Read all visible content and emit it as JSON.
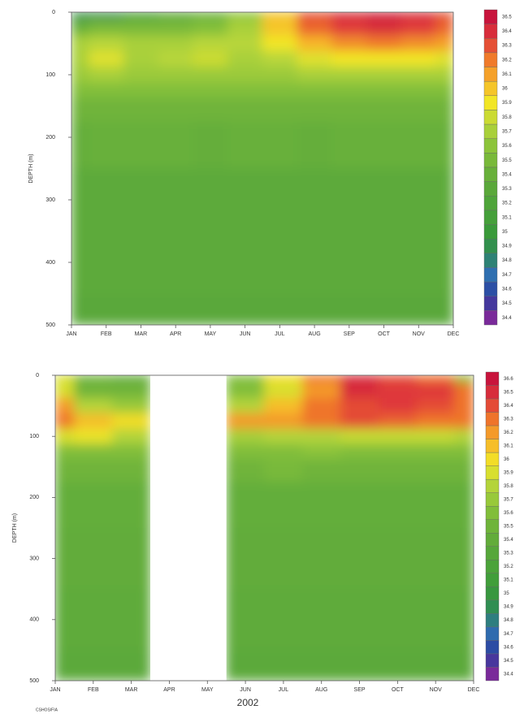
{
  "chart_data": [
    {
      "type": "contour",
      "categories": [
        "JAN",
        "FEB",
        "MAR",
        "APR",
        "MAY",
        "JUN",
        "JUL",
        "AUG",
        "SEP",
        "OCT",
        "NOV",
        "DEC"
      ],
      "y": [
        0,
        25,
        50,
        75,
        100,
        125,
        150,
        200,
        300,
        400,
        500
      ],
      "z": [
        [
          34.9,
          34.9,
          35.1,
          35.3,
          35.4,
          35.6,
          36.0,
          36.3,
          36.4,
          36.45,
          36.4,
          36.3
        ],
        [
          35.4,
          35.5,
          35.5,
          35.5,
          35.55,
          35.7,
          36.0,
          36.25,
          36.35,
          36.4,
          36.35,
          36.25
        ],
        [
          35.7,
          35.75,
          35.7,
          35.7,
          35.75,
          35.75,
          35.9,
          36.05,
          36.15,
          36.2,
          36.15,
          36.1
        ],
        [
          35.7,
          35.85,
          35.7,
          35.75,
          35.8,
          35.7,
          35.75,
          35.85,
          35.9,
          35.9,
          35.9,
          35.85
        ],
        [
          35.65,
          35.7,
          35.65,
          35.65,
          35.65,
          35.65,
          35.65,
          35.7,
          35.7,
          35.7,
          35.7,
          35.7
        ],
        [
          35.55,
          35.55,
          35.55,
          35.55,
          35.55,
          35.55,
          35.55,
          35.55,
          35.55,
          35.55,
          35.55,
          35.55
        ],
        [
          35.45,
          35.45,
          35.45,
          35.45,
          35.45,
          35.45,
          35.45,
          35.45,
          35.45,
          35.45,
          35.45,
          35.45
        ],
        [
          35.38,
          35.4,
          35.4,
          35.4,
          35.38,
          35.4,
          35.4,
          35.38,
          35.4,
          35.4,
          35.4,
          35.4
        ],
        [
          35.32,
          35.32,
          35.32,
          35.32,
          35.32,
          35.32,
          35.32,
          35.32,
          35.32,
          35.32,
          35.32,
          35.32
        ],
        [
          35.32,
          35.32,
          35.32,
          35.32,
          35.32,
          35.32,
          35.32,
          35.32,
          35.32,
          35.32,
          35.32,
          35.32
        ],
        [
          35.3,
          35.3,
          35.3,
          35.3,
          35.3,
          35.3,
          35.3,
          35.3,
          35.3,
          35.3,
          35.3,
          35.3
        ]
      ],
      "ylabel": "DEPTH (m)",
      "ylim": [
        0,
        500
      ],
      "yticks": [
        0,
        100,
        200,
        300,
        400,
        500
      ],
      "zticks": [
        36.5,
        36.4,
        36.3,
        36.2,
        36.1,
        36,
        35.9,
        35.8,
        35.7,
        35.6,
        35.5,
        35.4,
        35.3,
        35.2,
        35.1,
        35,
        34.9,
        34.8,
        34.7,
        34.6,
        34.5,
        34.4
      ],
      "colorscale": [
        "#7a2a9a",
        "#2b3f9f",
        "#2f6fb0",
        "#2e8b57",
        "#3a9a3a",
        "#4aa33a",
        "#5aa83a",
        "#6fb43a",
        "#8cc43a",
        "#b8d63a",
        "#f2e626",
        "#f7b52a",
        "#f07a2a",
        "#e03a3a",
        "#c8143c"
      ]
    },
    {
      "type": "contour",
      "categories": [
        "JAN",
        "FEB",
        "MAR",
        "APR",
        "MAY",
        "JUN",
        "JUL",
        "AUG",
        "SEP",
        "OCT",
        "NOV",
        "DEC"
      ],
      "y": [
        0,
        25,
        50,
        75,
        100,
        125,
        150,
        200,
        300,
        400,
        500
      ],
      "z": [
        [
          35.9,
          35.5,
          35.4,
          null,
          null,
          35.6,
          36.0,
          36.3,
          36.5,
          36.4,
          36.3,
          35.6
        ],
        [
          35.9,
          35.5,
          35.5,
          null,
          null,
          35.6,
          35.9,
          36.2,
          36.5,
          36.45,
          36.45,
          36.3
        ],
        [
          36.2,
          35.8,
          35.7,
          null,
          null,
          35.8,
          36.1,
          36.3,
          36.4,
          36.45,
          36.4,
          36.3
        ],
        [
          36.3,
          36.1,
          36.0,
          null,
          null,
          36.2,
          36.2,
          36.3,
          36.4,
          36.35,
          36.3,
          36.3
        ],
        [
          35.9,
          35.95,
          35.8,
          null,
          null,
          35.75,
          35.8,
          35.8,
          35.85,
          35.85,
          35.85,
          35.8
        ],
        [
          35.6,
          35.6,
          35.6,
          null,
          null,
          35.6,
          35.6,
          35.65,
          35.6,
          35.6,
          35.6,
          35.6
        ],
        [
          35.5,
          35.5,
          35.5,
          null,
          null,
          35.5,
          35.55,
          35.5,
          35.5,
          35.5,
          35.5,
          35.5
        ],
        [
          35.42,
          35.42,
          35.42,
          null,
          null,
          35.42,
          35.42,
          35.42,
          35.42,
          35.42,
          35.42,
          35.42
        ],
        [
          35.4,
          35.4,
          35.4,
          null,
          null,
          35.4,
          35.4,
          35.4,
          35.4,
          35.4,
          35.4,
          35.4
        ],
        [
          35.38,
          35.38,
          35.38,
          null,
          null,
          35.38,
          35.38,
          35.38,
          35.38,
          35.38,
          35.38,
          35.38
        ],
        [
          35.36,
          35.36,
          35.36,
          null,
          null,
          35.36,
          35.36,
          35.36,
          35.36,
          35.36,
          35.36,
          35.36
        ]
      ],
      "ylabel": "DEPTH (m)",
      "xlabel": "2002",
      "ylim": [
        0,
        500
      ],
      "yticks": [
        0,
        100,
        200,
        300,
        400,
        500
      ],
      "zticks": [
        36.6,
        36.5,
        36.4,
        36.3,
        36.2,
        36.1,
        36,
        35.9,
        35.8,
        35.7,
        35.6,
        35.5,
        35.4,
        35.3,
        35.2,
        35.1,
        35,
        34.9,
        34.8,
        34.7,
        34.6,
        34.5,
        34.4
      ],
      "colorscale": [
        "#7a2a9a",
        "#2b3f9f",
        "#2f6fb0",
        "#2e8b57",
        "#3a9a3a",
        "#4aa33a",
        "#5aa83a",
        "#6fb43a",
        "#8cc43a",
        "#b8d63a",
        "#f2e626",
        "#f7b52a",
        "#f07a2a",
        "#e03a3a",
        "#c8143c"
      ]
    }
  ],
  "credit": "CSHOS/FIA"
}
